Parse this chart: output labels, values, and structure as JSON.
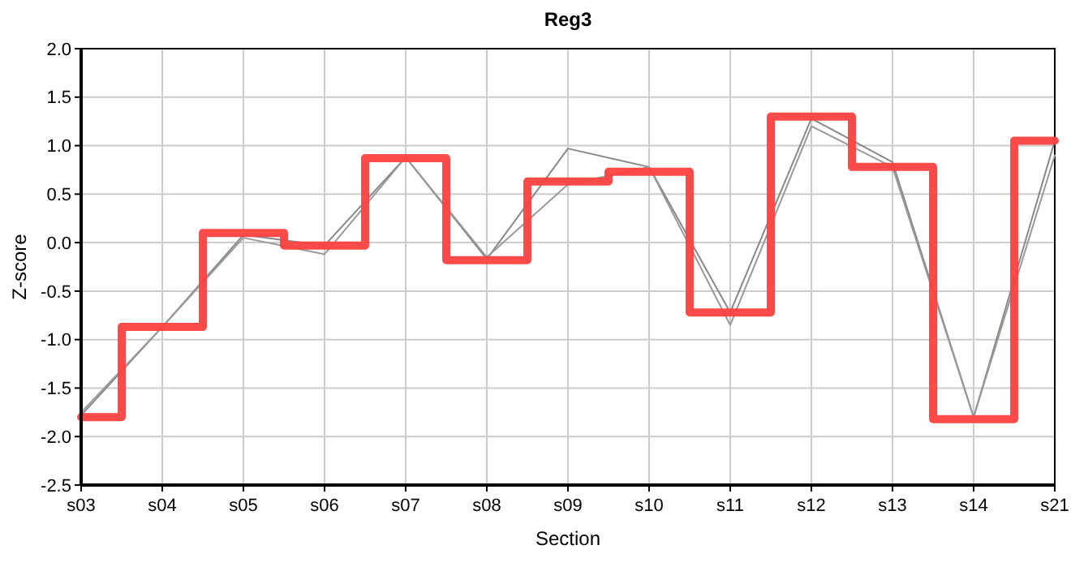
{
  "chart_data": {
    "type": "line",
    "title": "Reg3",
    "xlabel": "Section",
    "ylabel": "Z-score",
    "categories": [
      "s03",
      "s04",
      "s05",
      "s06",
      "s07",
      "s08",
      "s09",
      "s10",
      "s11",
      "s12",
      "s13",
      "s14",
      "s21"
    ],
    "series": [
      {
        "color": "#888888",
        "values": [
          -1.78,
          -0.87,
          0.08,
          -0.03,
          0.88,
          -0.17,
          0.97,
          0.78,
          -0.72,
          1.28,
          0.83,
          -1.8,
          1.05
        ]
      },
      {
        "color": "#999999",
        "values": [
          -1.75,
          -0.87,
          0.05,
          -0.12,
          0.88,
          -0.15,
          0.6,
          0.78,
          -0.85,
          1.2,
          0.78,
          -1.8,
          0.9
        ]
      },
      {
        "type": "step",
        "color": "#ff4040",
        "values": [
          -1.8,
          -0.87,
          0.1,
          -0.03,
          0.87,
          -0.18,
          0.63,
          0.73,
          -0.72,
          1.3,
          0.78,
          -1.82,
          1.05
        ]
      }
    ],
    "ylim": [
      -2.5,
      2.0
    ],
    "yticks": [
      {
        "value": -2.5,
        "label": "-2.5"
      },
      {
        "value": -2.0,
        "label": "-2.0"
      },
      {
        "value": -1.5,
        "label": "-1.5"
      },
      {
        "value": -1.0,
        "label": "-1.0"
      },
      {
        "value": -0.5,
        "label": "-0.5"
      },
      {
        "value": 0,
        "label": "0.0"
      },
      {
        "value": 0.5,
        "label": "0.5"
      },
      {
        "value": 1.0,
        "label": "1.0"
      },
      {
        "value": 1.5,
        "label": "1.5"
      },
      {
        "value": 2.0,
        "label": "2.0"
      }
    ],
    "grid": true,
    "marker": "none",
    "line_style": "solid"
  }
}
